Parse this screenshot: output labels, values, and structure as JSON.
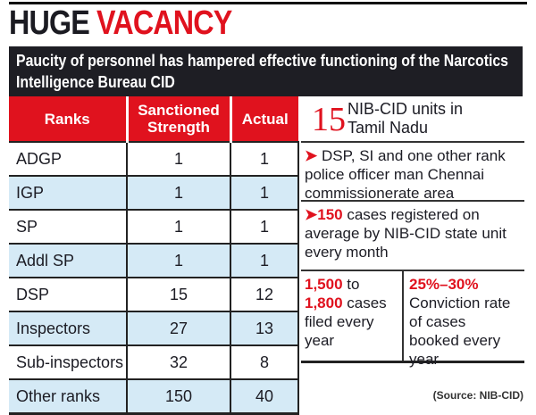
{
  "title": {
    "part1": "HUGE",
    "part2": "VACANCY"
  },
  "subtitle": "Paucity of personnel has hampered effective functioning of the Narcotics Intelligence Bureau CID",
  "colors": {
    "accent": "#e0121e",
    "banner": "#1e1e24",
    "row_alt": "#d5eaf6"
  },
  "chart_data": {
    "type": "table",
    "columns": [
      "Ranks",
      "Sanctioned Strength",
      "Actual"
    ],
    "rows": [
      [
        "ADGP",
        1,
        1
      ],
      [
        "IGP",
        1,
        1
      ],
      [
        "SP",
        1,
        1
      ],
      [
        "Addl SP",
        1,
        1
      ],
      [
        "DSP",
        15,
        12
      ],
      [
        "Inspectors",
        27,
        13
      ],
      [
        "Sub-inspectors",
        32,
        8
      ],
      [
        "Other ranks",
        150,
        40
      ]
    ]
  },
  "facts": {
    "units_number": "15",
    "units_text": "NIB-CID units in Tamil Nadu",
    "fact1": "DSP, SI and one other rank police officer man Chennai commissionerate area",
    "fact2_number": "150",
    "fact2_text": " cases registered on average by NIB-CID state unit every month",
    "fact3_num1": "1,500",
    "fact3_mid": " to ",
    "fact3_num2": "1,800",
    "fact3_text": " cases filed every year",
    "fact4_number": "25%–30%",
    "fact4_text": "Conviction rate of cases booked every year"
  },
  "source": "(Source: NIB-CID)"
}
